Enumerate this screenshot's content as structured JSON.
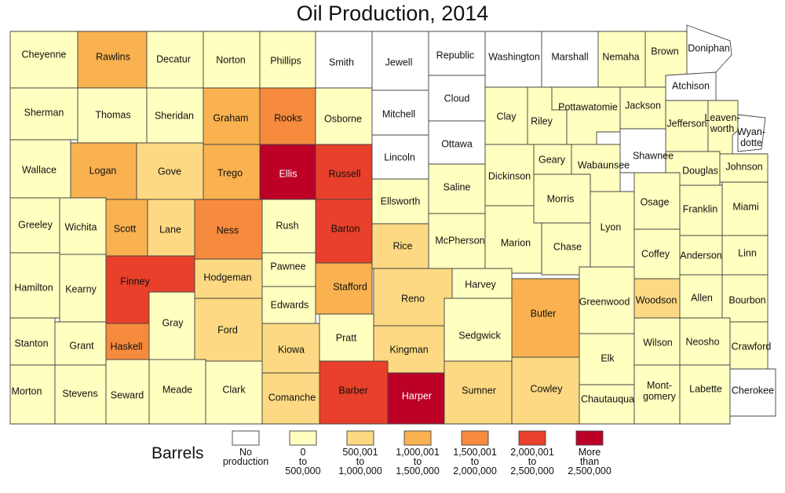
{
  "title": "Oil Production, 2014",
  "legend": {
    "title": "Barrels",
    "classes": [
      {
        "lines": [
          "No",
          "production"
        ],
        "color": "#ffffff"
      },
      {
        "lines": [
          "0",
          "to",
          "500,000"
        ],
        "color": "#ffffc0"
      },
      {
        "lines": [
          "500,001",
          "to",
          "1,000,000"
        ],
        "color": "#fcd982"
      },
      {
        "lines": [
          "1,000,001",
          "to",
          "1,500,000"
        ],
        "color": "#f9b24f"
      },
      {
        "lines": [
          "1,500,001",
          "to",
          "2,000,000"
        ],
        "color": "#f68a3d"
      },
      {
        "lines": [
          "2,000,001",
          "to",
          "2,500,000"
        ],
        "color": "#e8402a"
      },
      {
        "lines": [
          "More",
          "than",
          "2,500,000"
        ],
        "color": "#bd0026"
      }
    ]
  },
  "counties": [
    {
      "name": "Cheyenne",
      "cls": 1
    },
    {
      "name": "Rawlins",
      "cls": 3
    },
    {
      "name": "Decatur",
      "cls": 1
    },
    {
      "name": "Norton",
      "cls": 1
    },
    {
      "name": "Phillips",
      "cls": 1
    },
    {
      "name": "Smith",
      "cls": 0
    },
    {
      "name": "Jewell",
      "cls": 0
    },
    {
      "name": "Republic",
      "cls": 0
    },
    {
      "name": "Washington",
      "cls": 0
    },
    {
      "name": "Marshall",
      "cls": 0
    },
    {
      "name": "Nemaha",
      "cls": 1
    },
    {
      "name": "Brown",
      "cls": 1
    },
    {
      "name": "Doniphan",
      "cls": 0
    },
    {
      "name": "Sherman",
      "cls": 1
    },
    {
      "name": "Thomas",
      "cls": 1
    },
    {
      "name": "Sheridan",
      "cls": 1
    },
    {
      "name": "Graham",
      "cls": 3
    },
    {
      "name": "Rooks",
      "cls": 4
    },
    {
      "name": "Osborne",
      "cls": 1
    },
    {
      "name": "Mitchell",
      "cls": 0
    },
    {
      "name": "Cloud",
      "cls": 0
    },
    {
      "name": "Clay",
      "cls": 1
    },
    {
      "name": "Riley",
      "cls": 1
    },
    {
      "name": "Pottawatomie",
      "cls": 1
    },
    {
      "name": "Jackson",
      "cls": 1
    },
    {
      "name": "Atchison",
      "cls": 0
    },
    {
      "name": "Jefferson",
      "cls": 1
    },
    {
      "name": "Leaven-",
      "cls": 1,
      "label2": "worth"
    },
    {
      "name": "Wyan-",
      "cls": 0,
      "label2": "dotte"
    },
    {
      "name": "Wallace",
      "cls": 1
    },
    {
      "name": "Logan",
      "cls": 3
    },
    {
      "name": "Gove",
      "cls": 2
    },
    {
      "name": "Trego",
      "cls": 3
    },
    {
      "name": "Ellis",
      "cls": 6
    },
    {
      "name": "Russell",
      "cls": 5
    },
    {
      "name": "Lincoln",
      "cls": 0
    },
    {
      "name": "Ottawa",
      "cls": 0
    },
    {
      "name": "Dickinson",
      "cls": 1
    },
    {
      "name": "Geary",
      "cls": 1
    },
    {
      "name": "Wabaunsee",
      "cls": 1
    },
    {
      "name": "Shawnee",
      "cls": 0
    },
    {
      "name": "Douglas",
      "cls": 1
    },
    {
      "name": "Johnson",
      "cls": 1
    },
    {
      "name": "Greeley",
      "cls": 1
    },
    {
      "name": "Wichita",
      "cls": 1
    },
    {
      "name": "Scott",
      "cls": 3
    },
    {
      "name": "Lane",
      "cls": 2
    },
    {
      "name": "Ness",
      "cls": 4
    },
    {
      "name": "Rush",
      "cls": 1
    },
    {
      "name": "Barton",
      "cls": 5
    },
    {
      "name": "Ellsworth",
      "cls": 1
    },
    {
      "name": "Saline",
      "cls": 1
    },
    {
      "name": "McPherson",
      "cls": 1
    },
    {
      "name": "Marion",
      "cls": 1
    },
    {
      "name": "Morris",
      "cls": 1
    },
    {
      "name": "Chase",
      "cls": 1
    },
    {
      "name": "Lyon",
      "cls": 1
    },
    {
      "name": "Osage",
      "cls": 1
    },
    {
      "name": "Franklin",
      "cls": 1
    },
    {
      "name": "Miami",
      "cls": 1
    },
    {
      "name": "Hamilton",
      "cls": 1
    },
    {
      "name": "Kearny",
      "cls": 1
    },
    {
      "name": "Finney",
      "cls": 5
    },
    {
      "name": "Hodgeman",
      "cls": 2
    },
    {
      "name": "Pawnee",
      "cls": 1
    },
    {
      "name": "Stafford",
      "cls": 3
    },
    {
      "name": "Rice",
      "cls": 2
    },
    {
      "name": "Reno",
      "cls": 2
    },
    {
      "name": "Harvey",
      "cls": 1
    },
    {
      "name": "Butler",
      "cls": 3
    },
    {
      "name": "Greenwood",
      "cls": 1
    },
    {
      "name": "Coffey",
      "cls": 1
    },
    {
      "name": "Anderson",
      "cls": 1
    },
    {
      "name": "Linn",
      "cls": 1
    },
    {
      "name": "Woodson",
      "cls": 2
    },
    {
      "name": "Allen",
      "cls": 1
    },
    {
      "name": "Bourbon",
      "cls": 1
    },
    {
      "name": "Stanton",
      "cls": 1
    },
    {
      "name": "Grant",
      "cls": 1
    },
    {
      "name": "Haskell",
      "cls": 4
    },
    {
      "name": "Gray",
      "cls": 1
    },
    {
      "name": "Ford",
      "cls": 2
    },
    {
      "name": "Edwards",
      "cls": 1
    },
    {
      "name": "Kiowa",
      "cls": 2
    },
    {
      "name": "Pratt",
      "cls": 1
    },
    {
      "name": "Kingman",
      "cls": 2
    },
    {
      "name": "Sedgwick",
      "cls": 1
    },
    {
      "name": "Elk",
      "cls": 1
    },
    {
      "name": "Wilson",
      "cls": 1
    },
    {
      "name": "Neosho",
      "cls": 1
    },
    {
      "name": "Crawford",
      "cls": 1
    },
    {
      "name": "Morton",
      "cls": 1
    },
    {
      "name": "Stevens",
      "cls": 1
    },
    {
      "name": "Seward",
      "cls": 1
    },
    {
      "name": "Meade",
      "cls": 1
    },
    {
      "name": "Clark",
      "cls": 1
    },
    {
      "name": "Comanche",
      "cls": 2
    },
    {
      "name": "Barber",
      "cls": 5
    },
    {
      "name": "Harper",
      "cls": 6
    },
    {
      "name": "Sumner",
      "cls": 2
    },
    {
      "name": "Cowley",
      "cls": 2
    },
    {
      "name": "Chautauqua",
      "cls": 1
    },
    {
      "name": "Mont-",
      "cls": 1,
      "label2": "gomery"
    },
    {
      "name": "Labette",
      "cls": 1
    },
    {
      "name": "Cherokee",
      "cls": 0
    }
  ]
}
